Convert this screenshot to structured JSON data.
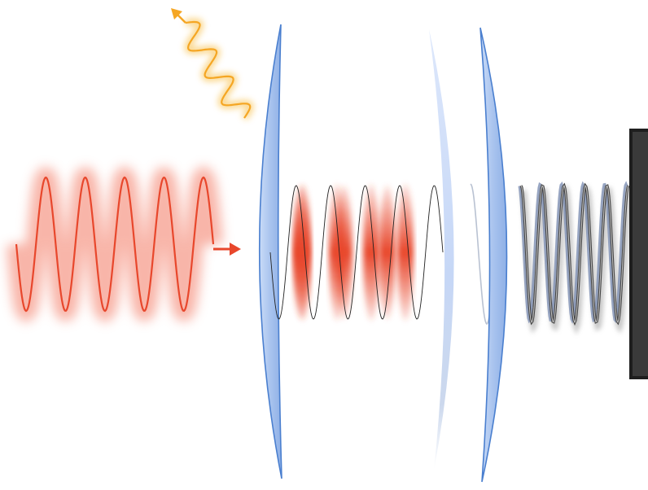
{
  "diagram": {
    "elements": [
      {
        "name": "incident-wave",
        "kind": "wave",
        "color": "#e8472c",
        "cycles": 5
      },
      {
        "name": "incident-arrow",
        "kind": "arrow",
        "color": "#e8472c"
      },
      {
        "name": "reflected-wave",
        "kind": "wave",
        "color": "#f5a623"
      },
      {
        "name": "reflected-arrow",
        "kind": "arrow",
        "color": "#f5a623"
      },
      {
        "name": "input-mirror",
        "kind": "curved-mirror",
        "color": "#a9c4f0"
      },
      {
        "name": "cavity-standing-wave",
        "kind": "standing-wave",
        "lobes": 6,
        "color": "#e8472c"
      },
      {
        "name": "intracavity-element",
        "kind": "curved-plate",
        "color": "#c8dafa"
      },
      {
        "name": "output-mirror",
        "kind": "curved-mirror",
        "color": "#a9c4f0"
      },
      {
        "name": "transmitted-wave",
        "kind": "wave",
        "color": "#555555",
        "cycles": 5
      },
      {
        "name": "detector",
        "kind": "block",
        "color": "#3a3a3a"
      }
    ]
  }
}
